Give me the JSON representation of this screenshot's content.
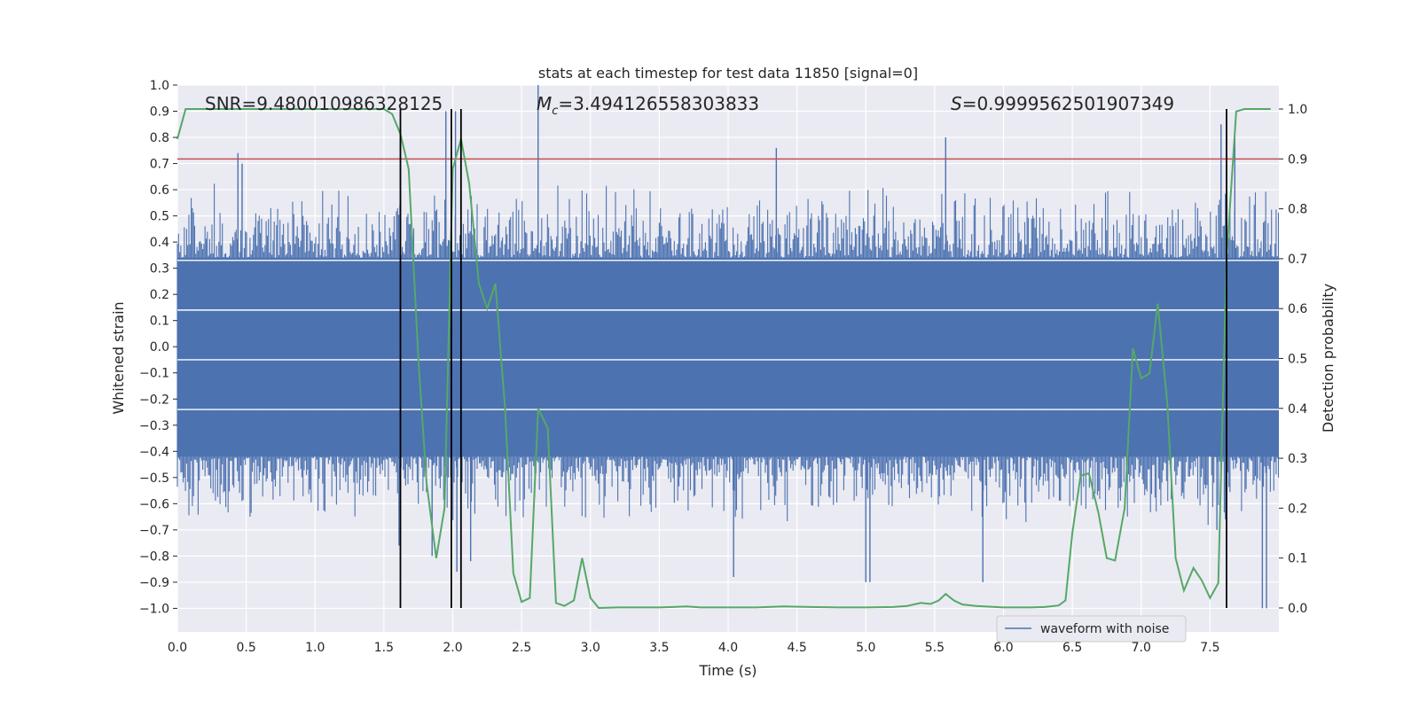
{
  "chart_data": {
    "type": "line",
    "title": "stats at each timestep for test data 11850 [signal=0]",
    "xlabel": "Time (s)",
    "ylabel": "Whitened strain",
    "y2label": "Detection probability",
    "xlim": [
      0.0,
      8.0
    ],
    "ylim": [
      -1.09,
      1.0
    ],
    "y2lim": [
      -0.048,
      1.048
    ],
    "x_ticks": [
      "0.0",
      "0.5",
      "1.0",
      "1.5",
      "2.0",
      "2.5",
      "3.0",
      "3.5",
      "4.0",
      "4.5",
      "5.0",
      "5.5",
      "6.0",
      "6.5",
      "7.0",
      "7.5"
    ],
    "y_ticks": [
      "−1.0",
      "−0.9",
      "−0.8",
      "−0.7",
      "−0.6",
      "−0.5",
      "−0.4",
      "−0.3",
      "−0.2",
      "−0.1",
      "0.0",
      "0.1",
      "0.2",
      "0.3",
      "0.4",
      "0.5",
      "0.6",
      "0.7",
      "0.8",
      "0.9",
      "1.0"
    ],
    "y2_ticks": [
      "0.0",
      "0.1",
      "0.2",
      "0.3",
      "0.4",
      "0.5",
      "0.6",
      "0.7",
      "0.8",
      "0.9",
      "1.0"
    ],
    "grid": true,
    "legend_position": "bottom-right",
    "colors": {
      "waveform": "#4c72b0",
      "probability": "#55a868",
      "threshold": "#c44e52",
      "markers": "#000000",
      "plot_background": "#eaeaf2",
      "grid": "#ffffff"
    },
    "annotations": {
      "snr": "SNR=9.480010986328125",
      "mc_symbol": "M",
      "mc_sub": "c",
      "mc_value": "=3.494126558303833",
      "s_symbol": "S",
      "s_value": "=0.9999562501907349"
    },
    "series": [
      {
        "name": "waveform with noise",
        "kind": "noise_band",
        "typical_range": [
          -0.42,
          0.34
        ],
        "peaks": [
          {
            "x": 0.44,
            "y": 0.74
          },
          {
            "x": 0.47,
            "y": 0.7
          },
          {
            "x": 1.62,
            "y": 0.78
          },
          {
            "x": 1.95,
            "y": 0.9
          },
          {
            "x": 2.02,
            "y": 0.9
          },
          {
            "x": 2.62,
            "y": 1.0
          },
          {
            "x": 4.35,
            "y": 0.76
          },
          {
            "x": 5.58,
            "y": 0.8
          },
          {
            "x": 7.58,
            "y": 0.85
          },
          {
            "x": 7.68,
            "y": 0.8
          },
          {
            "x": 1.61,
            "y": -0.76
          },
          {
            "x": 1.85,
            "y": -0.8
          },
          {
            "x": 2.03,
            "y": -0.86
          },
          {
            "x": 2.13,
            "y": -0.82
          },
          {
            "x": 4.04,
            "y": -0.88
          },
          {
            "x": 5.0,
            "y": -0.9
          },
          {
            "x": 5.03,
            "y": -0.9
          },
          {
            "x": 5.85,
            "y": -0.9
          },
          {
            "x": 7.55,
            "y": -0.7
          },
          {
            "x": 7.88,
            "y": -1.0
          },
          {
            "x": 7.91,
            "y": -1.0
          }
        ]
      },
      {
        "name": "",
        "axis": "right",
        "x": [
          0.0,
          0.06,
          0.12,
          1.5,
          1.56,
          1.62,
          1.68,
          1.75,
          1.81,
          1.88,
          1.94,
          2.0,
          2.06,
          2.12,
          2.19,
          2.25,
          2.31,
          2.38,
          2.44,
          2.5,
          2.56,
          2.62,
          2.69,
          2.75,
          2.81,
          2.88,
          2.94,
          3.0,
          3.06,
          3.2,
          3.5,
          3.7,
          3.8,
          4.0,
          4.2,
          4.4,
          4.6,
          4.8,
          5.0,
          5.2,
          5.3,
          5.4,
          5.47,
          5.53,
          5.58,
          5.64,
          5.7,
          5.8,
          6.0,
          6.2,
          6.3,
          6.4,
          6.45,
          6.5,
          6.56,
          6.62,
          6.69,
          6.75,
          6.81,
          6.88,
          6.94,
          7.0,
          7.06,
          7.12,
          7.19,
          7.25,
          7.31,
          7.38,
          7.44,
          7.5,
          7.56,
          7.62,
          7.69,
          7.75,
          7.8,
          7.94
        ],
        "values": [
          0.94,
          1.0,
          1.0,
          1.0,
          0.99,
          0.95,
          0.88,
          0.5,
          0.25,
          0.1,
          0.2,
          0.88,
          0.94,
          0.85,
          0.65,
          0.6,
          0.65,
          0.4,
          0.07,
          0.012,
          0.02,
          0.4,
          0.36,
          0.01,
          0.004,
          0.015,
          0.1,
          0.02,
          0.0,
          0.001,
          0.001,
          0.003,
          0.001,
          0.001,
          0.001,
          0.003,
          0.002,
          0.001,
          0.001,
          0.002,
          0.004,
          0.01,
          0.008,
          0.015,
          0.028,
          0.015,
          0.007,
          0.004,
          0.001,
          0.001,
          0.002,
          0.005,
          0.015,
          0.15,
          0.265,
          0.27,
          0.19,
          0.1,
          0.095,
          0.2,
          0.52,
          0.46,
          0.47,
          0.61,
          0.41,
          0.1,
          0.035,
          0.08,
          0.055,
          0.02,
          0.05,
          0.7,
          0.995,
          1.0,
          1.0,
          1.0
        ]
      }
    ],
    "threshold": {
      "axis": "right",
      "value": 0.9
    },
    "marker_lines": [
      1.62,
      1.99,
      2.06,
      7.62
    ],
    "horizontal_markers": [
      0.33,
      0.14,
      -0.05,
      -0.24
    ]
  }
}
